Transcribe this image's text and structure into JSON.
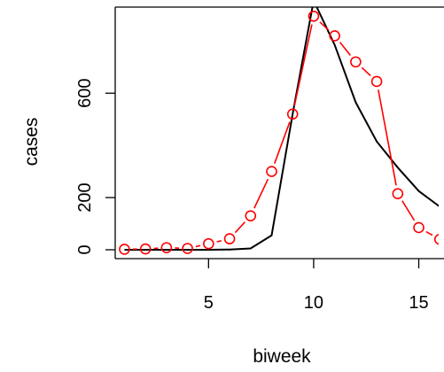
{
  "chart_data": {
    "type": "line",
    "xlabel": "biweek",
    "ylabel": "cases",
    "x_ticks": [
      5,
      10,
      15
    ],
    "y_ticks": [
      0,
      200,
      600
    ],
    "xlim": [
      0.56,
      16.2
    ],
    "ylim": [
      -34,
      930
    ],
    "grid": false,
    "series": [
      {
        "style": "line",
        "color": "#000000",
        "x": [
          1,
          2,
          3,
          4,
          5,
          6,
          7,
          8,
          9,
          10,
          11,
          12,
          13,
          14,
          15,
          16
        ],
        "y": [
          0,
          0,
          0,
          0,
          0,
          1,
          5,
          55,
          520,
          955,
          785,
          565,
          415,
          315,
          225,
          165
        ]
      },
      {
        "style": "line+points",
        "color": "#ff0000",
        "marker": "open-circle",
        "x": [
          1,
          2,
          3,
          4,
          5,
          6,
          7,
          8,
          9,
          10,
          11,
          12,
          13,
          14,
          15,
          16
        ],
        "y": [
          2,
          3,
          8,
          5,
          23,
          42,
          130,
          300,
          520,
          895,
          820,
          720,
          645,
          215,
          85,
          40
        ]
      }
    ]
  }
}
